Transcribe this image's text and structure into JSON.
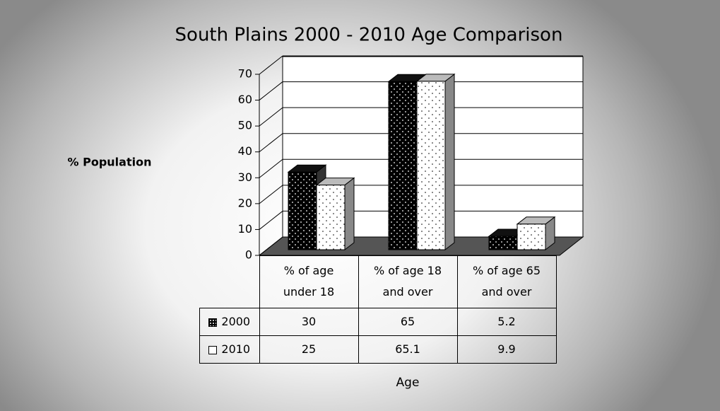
{
  "chart_data": {
    "type": "bar3d",
    "title": "South Plains 2000 - 2010 Age Comparison",
    "y_label": "% Population",
    "x_label": "Age",
    "categories": [
      "% of age under 18",
      "% of age 18 and over",
      "% of age 65 and over"
    ],
    "series": [
      {
        "name": "2000",
        "color": "#000000",
        "values": [
          30,
          65,
          5.2
        ]
      },
      {
        "name": "2010",
        "color": "#ffffff",
        "values": [
          25,
          65.1,
          9.9
        ]
      }
    ],
    "ylim": [
      0,
      70
    ],
    "yticks": [
      0,
      10,
      20,
      30,
      40,
      50,
      60,
      70
    ],
    "grid": true,
    "data_table": true
  }
}
